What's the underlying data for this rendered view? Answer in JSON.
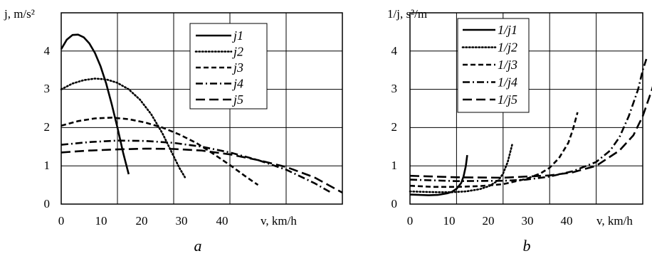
{
  "chart_data": [
    {
      "type": "line",
      "caption": "a",
      "xlabel": "v, km/h",
      "ylabel": "j, m/s²",
      "xlim": [
        0,
        50
      ],
      "ylim": [
        0,
        5
      ],
      "xticks": [
        0,
        10,
        20,
        30,
        40
      ],
      "yticks": [
        0,
        1,
        2,
        3,
        4
      ],
      "grid": true,
      "legend_position": "top-right",
      "series": [
        {
          "name": "j1",
          "dash": "solid",
          "x": [
            0,
            1,
            2,
            3,
            4,
            5,
            6,
            7,
            8,
            9,
            10,
            11,
            12
          ],
          "y": [
            4.05,
            4.3,
            4.42,
            4.43,
            4.36,
            4.2,
            3.95,
            3.6,
            3.15,
            2.6,
            2.0,
            1.35,
            0.78
          ]
        },
        {
          "name": "j2",
          "dash": "dotted",
          "x": [
            0,
            2,
            4,
            6,
            8,
            10,
            12,
            14,
            16,
            18,
            20,
            21,
            22
          ],
          "y": [
            3.0,
            3.15,
            3.24,
            3.28,
            3.26,
            3.17,
            3.0,
            2.73,
            2.35,
            1.85,
            1.25,
            0.95,
            0.7
          ]
        },
        {
          "name": "j3",
          "dash": "dashed",
          "x": [
            0,
            3,
            6,
            9,
            12,
            15,
            18,
            21,
            24,
            27,
            30,
            33,
            35
          ],
          "y": [
            2.05,
            2.17,
            2.24,
            2.26,
            2.22,
            2.13,
            2.0,
            1.82,
            1.6,
            1.32,
            1.02,
            0.7,
            0.5
          ]
        },
        {
          "name": "j4",
          "dash": "dashdot",
          "x": [
            0,
            5,
            10,
            15,
            20,
            25,
            30,
            35,
            40,
            45,
            48
          ],
          "y": [
            1.55,
            1.62,
            1.66,
            1.65,
            1.6,
            1.5,
            1.35,
            1.15,
            0.9,
            0.55,
            0.3
          ]
        },
        {
          "name": "j5",
          "dash": "longdash",
          "x": [
            0,
            5,
            10,
            15,
            20,
            25,
            30,
            35,
            40,
            45,
            50
          ],
          "y": [
            1.35,
            1.4,
            1.43,
            1.45,
            1.44,
            1.4,
            1.3,
            1.15,
            0.97,
            0.7,
            0.3
          ]
        }
      ]
    },
    {
      "type": "line",
      "caption": "b",
      "xlabel": "v, km/h",
      "ylabel": "1/j, s²/m",
      "xlim": [
        0,
        50
      ],
      "ylim": [
        0,
        5
      ],
      "xticks": [
        0,
        10,
        20,
        30,
        40
      ],
      "yticks": [
        0,
        1,
        2,
        3,
        4
      ],
      "grid": true,
      "legend_position": "top-left",
      "series": [
        {
          "name": "1/j1",
          "dash": "solid",
          "x": [
            0,
            2,
            4,
            6,
            8,
            9,
            10,
            11,
            11.5,
            12,
            12.3
          ],
          "y": [
            0.25,
            0.24,
            0.23,
            0.24,
            0.28,
            0.32,
            0.4,
            0.55,
            0.72,
            1.0,
            1.28
          ]
        },
        {
          "name": "1/j2",
          "dash": "dotted",
          "x": [
            0,
            3,
            6,
            9,
            12,
            15,
            17,
            19,
            20,
            21,
            22
          ],
          "y": [
            0.33,
            0.32,
            0.31,
            0.31,
            0.33,
            0.39,
            0.47,
            0.62,
            0.8,
            1.1,
            1.58
          ]
        },
        {
          "name": "1/j3",
          "dash": "dashed",
          "x": [
            0,
            5,
            10,
            15,
            20,
            25,
            28,
            30,
            32,
            34,
            35,
            36
          ],
          "y": [
            0.48,
            0.45,
            0.45,
            0.47,
            0.52,
            0.66,
            0.8,
            0.95,
            1.2,
            1.6,
            1.95,
            2.4
          ]
        },
        {
          "name": "1/j4",
          "dash": "dashdot",
          "x": [
            0,
            10,
            20,
            25,
            30,
            35,
            40,
            43,
            45,
            47,
            49,
            50,
            50.8
          ],
          "y": [
            0.64,
            0.6,
            0.61,
            0.64,
            0.72,
            0.86,
            1.1,
            1.4,
            1.75,
            2.3,
            3.0,
            3.5,
            3.8
          ]
        },
        {
          "name": "1/j5",
          "dash": "longdash",
          "x": [
            0,
            10,
            20,
            30,
            35,
            40,
            45,
            48,
            50,
            52,
            54,
            55,
            56
          ],
          "y": [
            0.74,
            0.7,
            0.69,
            0.75,
            0.83,
            1.0,
            1.4,
            1.8,
            2.3,
            3.0,
            3.9,
            4.5,
            5.0
          ]
        }
      ]
    }
  ]
}
